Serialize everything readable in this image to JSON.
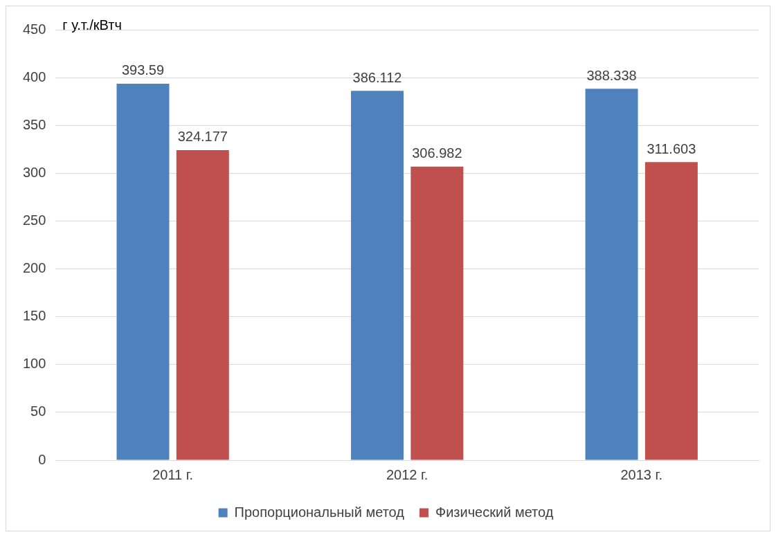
{
  "chart_data": {
    "type": "bar",
    "ylabel": "г у.т./кВтч",
    "categories": [
      "2011 г.",
      "2012 г.",
      "2013 г."
    ],
    "series": [
      {
        "name": "Пропорциональный метод",
        "color": "#4f81bd",
        "values": [
          393.59,
          386.112,
          388.338
        ]
      },
      {
        "name": "Физический метод",
        "color": "#c0504d",
        "values": [
          324.177,
          306.982,
          311.603
        ]
      }
    ],
    "ylim": [
      0,
      450
    ],
    "yticks": [
      0,
      50,
      100,
      150,
      200,
      250,
      300,
      350,
      400,
      450
    ],
    "grid": "y",
    "legend": "bottom",
    "data_labels": true
  }
}
